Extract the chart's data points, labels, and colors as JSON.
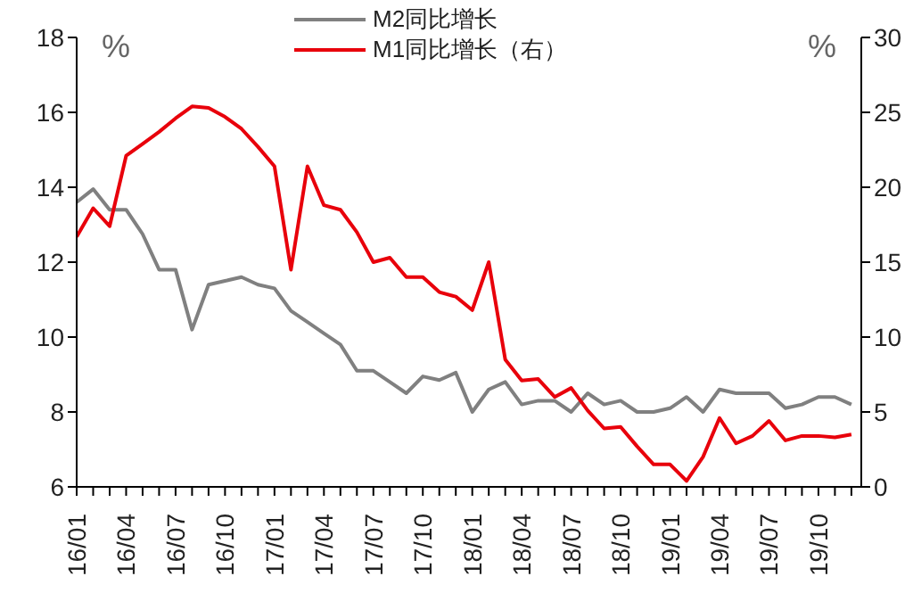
{
  "chart_data": {
    "type": "line",
    "categories": [
      "16/01",
      null,
      null,
      "16/04",
      null,
      null,
      "16/07",
      null,
      null,
      "16/10",
      null,
      null,
      "17/01",
      null,
      null,
      "17/04",
      null,
      null,
      "17/07",
      null,
      null,
      "17/10",
      null,
      null,
      "18/01",
      null,
      null,
      "18/04",
      null,
      null,
      "18/07",
      null,
      null,
      "18/10",
      null,
      null,
      "19/01",
      null,
      null,
      "19/04",
      null,
      null,
      "19/07",
      null,
      null,
      "19/10",
      null,
      null
    ],
    "series": [
      {
        "name": "M2同比增长",
        "color": "#808080",
        "values": [
          13.6,
          13.95,
          13.4,
          13.4,
          12.75,
          11.8,
          11.8,
          10.2,
          11.4,
          11.5,
          11.6,
          11.4,
          11.3,
          10.7,
          10.4,
          10.1,
          9.8,
          9.1,
          9.1,
          8.8,
          8.5,
          8.95,
          8.85,
          9.05,
          8.0,
          8.6,
          8.8,
          8.2,
          8.3,
          8.3,
          8.0,
          8.5,
          8.2,
          8.3,
          8.0,
          8.0,
          8.1,
          8.4,
          8.0,
          8.6,
          8.5,
          8.5,
          8.5,
          8.1,
          8.2,
          8.4,
          8.4,
          8.2
        ]
      },
      {
        "name": "M1同比增长（右）",
        "color": "#e8000b",
        "axis": "y2",
        "values": [
          16.7,
          18.6,
          17.4,
          22.1,
          22.9,
          23.7,
          24.6,
          25.4,
          25.3,
          24.7,
          23.9,
          22.7,
          21.4,
          14.5,
          21.4,
          18.8,
          18.5,
          17.0,
          15.0,
          15.3,
          14.0,
          14.0,
          13.0,
          12.7,
          11.8,
          15.0,
          8.5,
          7.1,
          7.2,
          6.0,
          6.6,
          5.1,
          3.9,
          4.0,
          2.7,
          1.5,
          1.5,
          0.4,
          2.0,
          4.6,
          2.9,
          3.4,
          4.4,
          3.1,
          3.4,
          3.4,
          3.3,
          3.5
        ]
      }
    ],
    "ylabel": "%",
    "y2label": "%",
    "ylim": [
      6,
      18
    ],
    "yticks": [
      6,
      8,
      10,
      12,
      14,
      16,
      18
    ],
    "y2lim": [
      0,
      30
    ],
    "y2ticks": [
      0,
      5,
      10,
      15,
      20,
      25,
      30
    ],
    "legend": "top",
    "marker": "none",
    "line_style": "solid"
  }
}
